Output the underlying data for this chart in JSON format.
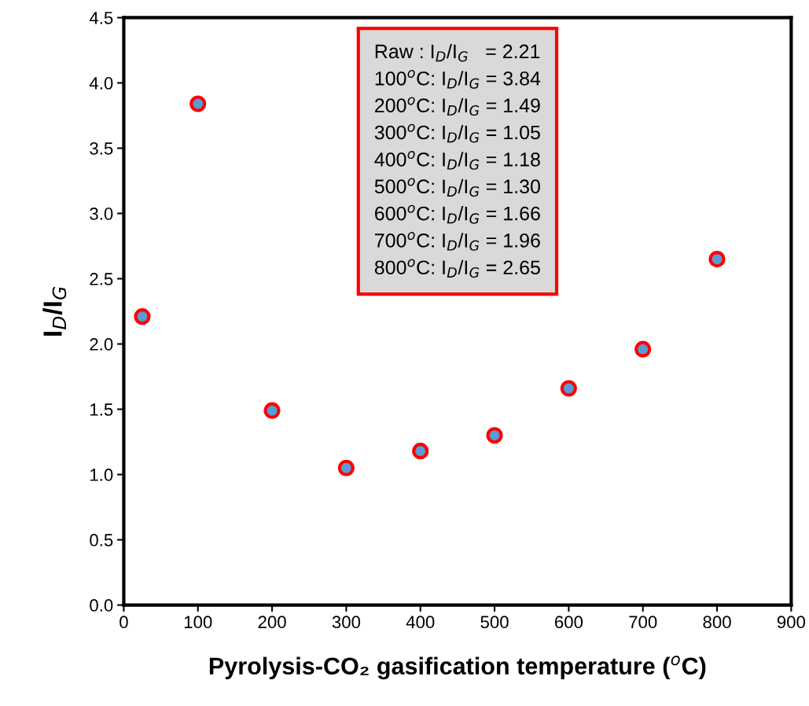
{
  "chart_data": {
    "type": "scatter",
    "xlabel": "Pyrolysis-CO₂ gasification temperature ($^{o}$C)",
    "ylabel": "I$_{D}$/I$_{G}$",
    "x": [
      25,
      100,
      200,
      300,
      400,
      500,
      600,
      700,
      800
    ],
    "series": [
      {
        "color": "#5b9bd5",
        "values": [
          2.21,
          3.84,
          1.49,
          1.05,
          1.18,
          1.3,
          1.66,
          1.96,
          2.65
        ]
      }
    ],
    "marker": "circle",
    "xlim": [
      0,
      900
    ],
    "xticks": [
      0,
      100,
      200,
      300,
      400,
      500,
      600,
      700,
      800,
      900
    ],
    "ylim": [
      0,
      4.5
    ],
    "yticks": [
      {
        "value": 0,
        "label": "0.0"
      },
      {
        "value": 0.5,
        "label": "0.5"
      },
      {
        "value": 1,
        "label": "1.0"
      },
      {
        "value": 1.5,
        "label": "1.5"
      },
      {
        "value": 2,
        "label": "2.0"
      },
      {
        "value": 2.5,
        "label": "2.5"
      },
      {
        "value": 3,
        "label": "3.0"
      },
      {
        "value": 3.5,
        "label": "3.5"
      },
      {
        "value": 4,
        "label": "4.0"
      },
      {
        "value": 4.5,
        "label": "4.5"
      }
    ],
    "grid": false,
    "legend": false,
    "annotations": [
      "Raw : I$_{D}$/I$_{G}$   = 2.21",
      "100$^{o}$C: I$_{D}$/I$_{G}$ = 3.84",
      "200$^{o}$C: I$_{D}$/I$_{G}$ = 1.49",
      "300$^{o}$C: I$_{D}$/I$_{G}$ = 1.05",
      "400$^{o}$C: I$_{D}$/I$_{G}$ = 1.18",
      "500$^{o}$C: I$_{D}$/I$_{G}$ = 1.30",
      "600$^{o}$C: I$_{D}$/I$_{G}$ = 1.66",
      "700$^{o}$C: I$_{D}$/I$_{G}$ = 1.96",
      "800$^{o}$C: I$_{D}$/I$_{G}$ = 2.65"
    ]
  }
}
